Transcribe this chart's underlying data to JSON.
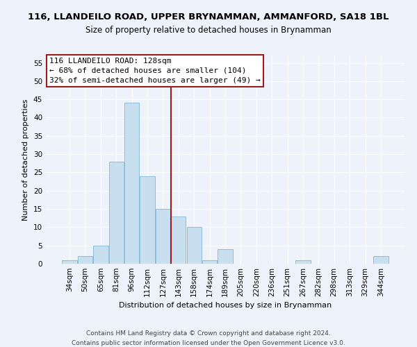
{
  "title": "116, LLANDEILO ROAD, UPPER BRYNAMMAN, AMMANFORD, SA18 1BL",
  "subtitle": "Size of property relative to detached houses in Brynamman",
  "xlabel": "Distribution of detached houses by size in Brynamman",
  "ylabel": "Number of detached properties",
  "footer_line1": "Contains HM Land Registry data © Crown copyright and database right 2024.",
  "footer_line2": "Contains public sector information licensed under the Open Government Licence v3.0.",
  "bar_labels": [
    "34sqm",
    "50sqm",
    "65sqm",
    "81sqm",
    "96sqm",
    "112sqm",
    "127sqm",
    "143sqm",
    "158sqm",
    "174sqm",
    "189sqm",
    "205sqm",
    "220sqm",
    "236sqm",
    "251sqm",
    "267sqm",
    "282sqm",
    "298sqm",
    "313sqm",
    "329sqm",
    "344sqm"
  ],
  "bar_values": [
    1,
    2,
    5,
    28,
    44,
    24,
    15,
    13,
    10,
    1,
    4,
    0,
    0,
    0,
    0,
    1,
    0,
    0,
    0,
    0,
    2
  ],
  "bar_color": "#c8dff0",
  "bar_edge_color": "#7fb8d8",
  "vline_x_index": 6,
  "vline_color": "#9b1c1c",
  "ylim": [
    0,
    57
  ],
  "yticks": [
    0,
    5,
    10,
    15,
    20,
    25,
    30,
    35,
    40,
    45,
    50,
    55
  ],
  "annotation_title": "116 LLANDEILO ROAD: 128sqm",
  "annotation_line1": "← 68% of detached houses are smaller (104)",
  "annotation_line2": "32% of semi-detached houses are larger (49) →",
  "box_facecolor": "#ffffff",
  "box_edgecolor": "#9b1c1c",
  "bg_color": "#eef2fb",
  "title_fontsize": 9.5,
  "subtitle_fontsize": 8.5,
  "axis_label_fontsize": 8,
  "tick_fontsize": 7.5,
  "footer_fontsize": 6.5,
  "annotation_fontsize": 8
}
